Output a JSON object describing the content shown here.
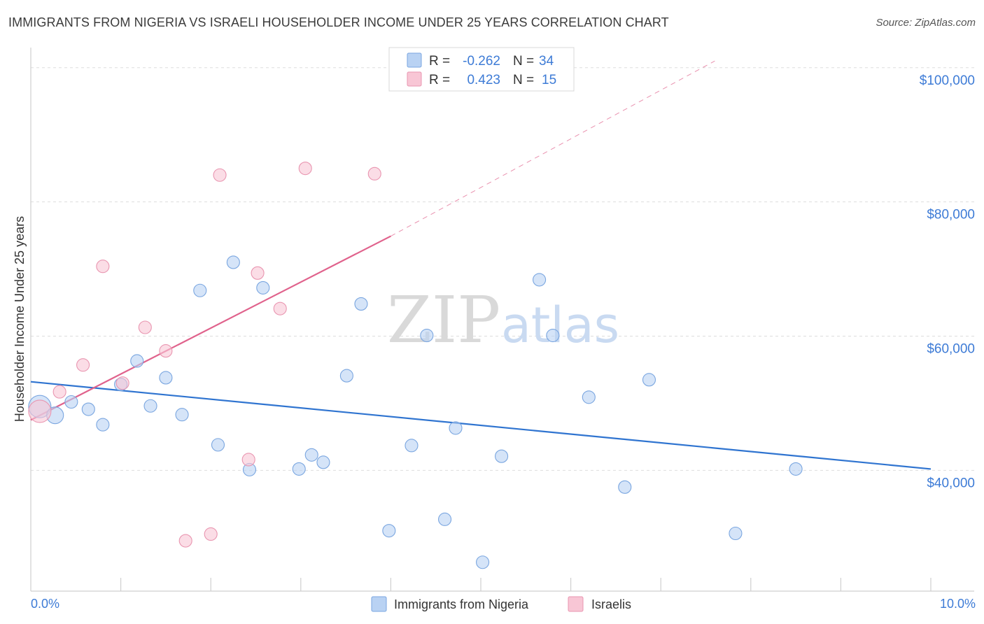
{
  "title": "IMMIGRANTS FROM NIGERIA VS ISRAELI HOUSEHOLDER INCOME UNDER 25 YEARS CORRELATION CHART",
  "source": "Source: ZipAtlas.com",
  "watermark": {
    "zip": "ZIP",
    "atlas": "atlas"
  },
  "colors": {
    "blue_fill": "#b9d2f3",
    "blue_stroke": "#7aa6e0",
    "blue_line": "#2f74d0",
    "pink_fill": "#f8c6d5",
    "pink_stroke": "#e995b0",
    "pink_line": "#e0628c",
    "axis_text": "#3d7bd6",
    "grid": "#dddddd"
  },
  "legend": {
    "rows": [
      {
        "r_label": "R =",
        "r_value": "-0.262",
        "n_label": "N =",
        "n_value": "34"
      },
      {
        "r_label": "R =",
        "r_value": "0.423",
        "n_label": "N =",
        "n_value": "15"
      }
    ]
  },
  "chart_data": {
    "type": "scatter",
    "title": "IMMIGRANTS FROM NIGERIA VS ISRAELI HOUSEHOLDER INCOME UNDER 25 YEARS CORRELATION CHART",
    "xlabel": "",
    "ylabel": "Householder Income Under 25 years",
    "xlim": [
      0,
      10
    ],
    "ylim": [
      22000,
      103000
    ],
    "x_tick_labels": [
      "0.0%",
      "10.0%"
    ],
    "y_ticks": [
      40000,
      60000,
      80000,
      100000
    ],
    "y_tick_labels": [
      "$40,000",
      "$60,000",
      "$80,000",
      "$100,000"
    ],
    "series": [
      {
        "name": "Immigrants from Nigeria",
        "r": -0.262,
        "n": 34,
        "trend": {
          "x": [
            0,
            10
          ],
          "y": [
            53200,
            40200
          ],
          "dashed_to_x": null
        },
        "points": [
          {
            "x": 0.1,
            "y": 49500,
            "size": "large"
          },
          {
            "x": 0.27,
            "y": 48200,
            "size": "medium"
          },
          {
            "x": 0.45,
            "y": 50200
          },
          {
            "x": 0.64,
            "y": 49100
          },
          {
            "x": 0.8,
            "y": 46800
          },
          {
            "x": 1.0,
            "y": 52800
          },
          {
            "x": 1.18,
            "y": 56300
          },
          {
            "x": 1.33,
            "y": 49600
          },
          {
            "x": 1.5,
            "y": 53800
          },
          {
            "x": 1.68,
            "y": 48300
          },
          {
            "x": 1.88,
            "y": 66800
          },
          {
            "x": 2.08,
            "y": 43800
          },
          {
            "x": 2.25,
            "y": 71000
          },
          {
            "x": 2.43,
            "y": 40100
          },
          {
            "x": 2.58,
            "y": 67200
          },
          {
            "x": 2.98,
            "y": 40200
          },
          {
            "x": 3.12,
            "y": 42300
          },
          {
            "x": 3.25,
            "y": 41200
          },
          {
            "x": 3.51,
            "y": 54100
          },
          {
            "x": 3.67,
            "y": 64800
          },
          {
            "x": 3.98,
            "y": 31000
          },
          {
            "x": 4.23,
            "y": 43700
          },
          {
            "x": 4.4,
            "y": 60100
          },
          {
            "x": 4.6,
            "y": 32700
          },
          {
            "x": 4.72,
            "y": 46300
          },
          {
            "x": 5.02,
            "y": 26300
          },
          {
            "x": 5.23,
            "y": 42100
          },
          {
            "x": 5.65,
            "y": 68400
          },
          {
            "x": 5.8,
            "y": 60100
          },
          {
            "x": 6.2,
            "y": 50900
          },
          {
            "x": 6.6,
            "y": 37500
          },
          {
            "x": 6.87,
            "y": 53500
          },
          {
            "x": 7.83,
            "y": 30600
          },
          {
            "x": 8.5,
            "y": 40200
          }
        ]
      },
      {
        "name": "Israelis",
        "r": 0.423,
        "n": 15,
        "trend": {
          "x": [
            0,
            4
          ],
          "y": [
            47500,
            74900
          ],
          "dashed_to_x": 7.6,
          "dashed_to_y": 101000
        },
        "points": [
          {
            "x": 0.1,
            "y": 48800,
            "size": "large"
          },
          {
            "x": 0.32,
            "y": 51700
          },
          {
            "x": 0.58,
            "y": 55700
          },
          {
            "x": 0.8,
            "y": 70400
          },
          {
            "x": 1.02,
            "y": 53000
          },
          {
            "x": 1.27,
            "y": 61300
          },
          {
            "x": 1.5,
            "y": 57800
          },
          {
            "x": 1.72,
            "y": 29500
          },
          {
            "x": 2.0,
            "y": 30500
          },
          {
            "x": 2.1,
            "y": 84000
          },
          {
            "x": 2.42,
            "y": 41600
          },
          {
            "x": 2.52,
            "y": 69400
          },
          {
            "x": 2.77,
            "y": 64100
          },
          {
            "x": 3.05,
            "y": 85000
          },
          {
            "x": 3.82,
            "y": 84200
          }
        ]
      }
    ]
  }
}
